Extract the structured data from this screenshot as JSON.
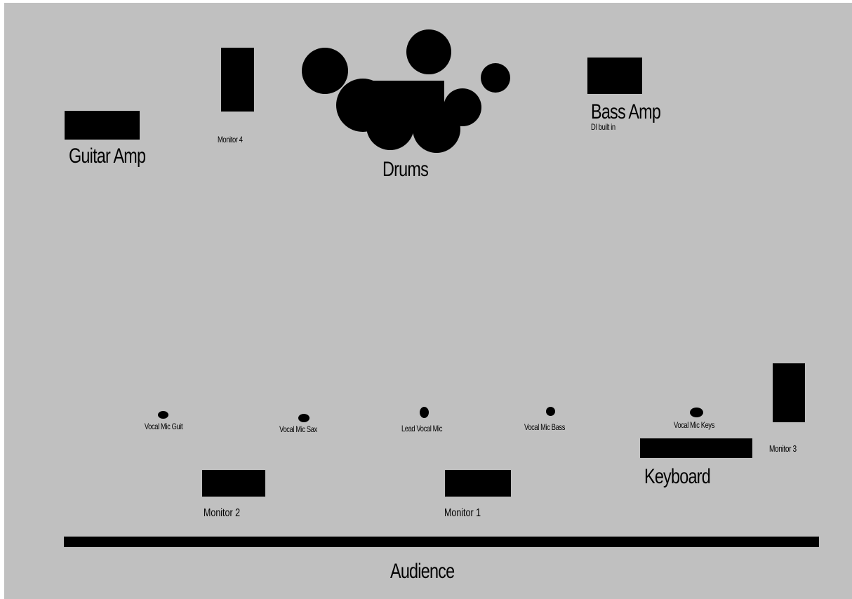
{
  "stage": {
    "background_color": "#c0c0c0",
    "equipment_color": "#000000",
    "audience_label": "Audience"
  },
  "backline": {
    "guitar_amp": "Guitar Amp",
    "bass_amp": "Bass Amp",
    "bass_amp_note": "DI built in",
    "drums": "Drums",
    "keyboard": "Keyboard"
  },
  "monitors": {
    "monitor_1": "Monitor 1",
    "monitor_2": "Monitor 2",
    "monitor_3": "Monitor 3",
    "monitor_4": "Monitor 4"
  },
  "mics": {
    "guit": "Vocal Mic Guit",
    "sax": "Vocal Mic Sax",
    "lead": "Lead Vocal Mic",
    "bass": "Vocal Mic Bass",
    "keys": "Vocal Mic Keys"
  }
}
